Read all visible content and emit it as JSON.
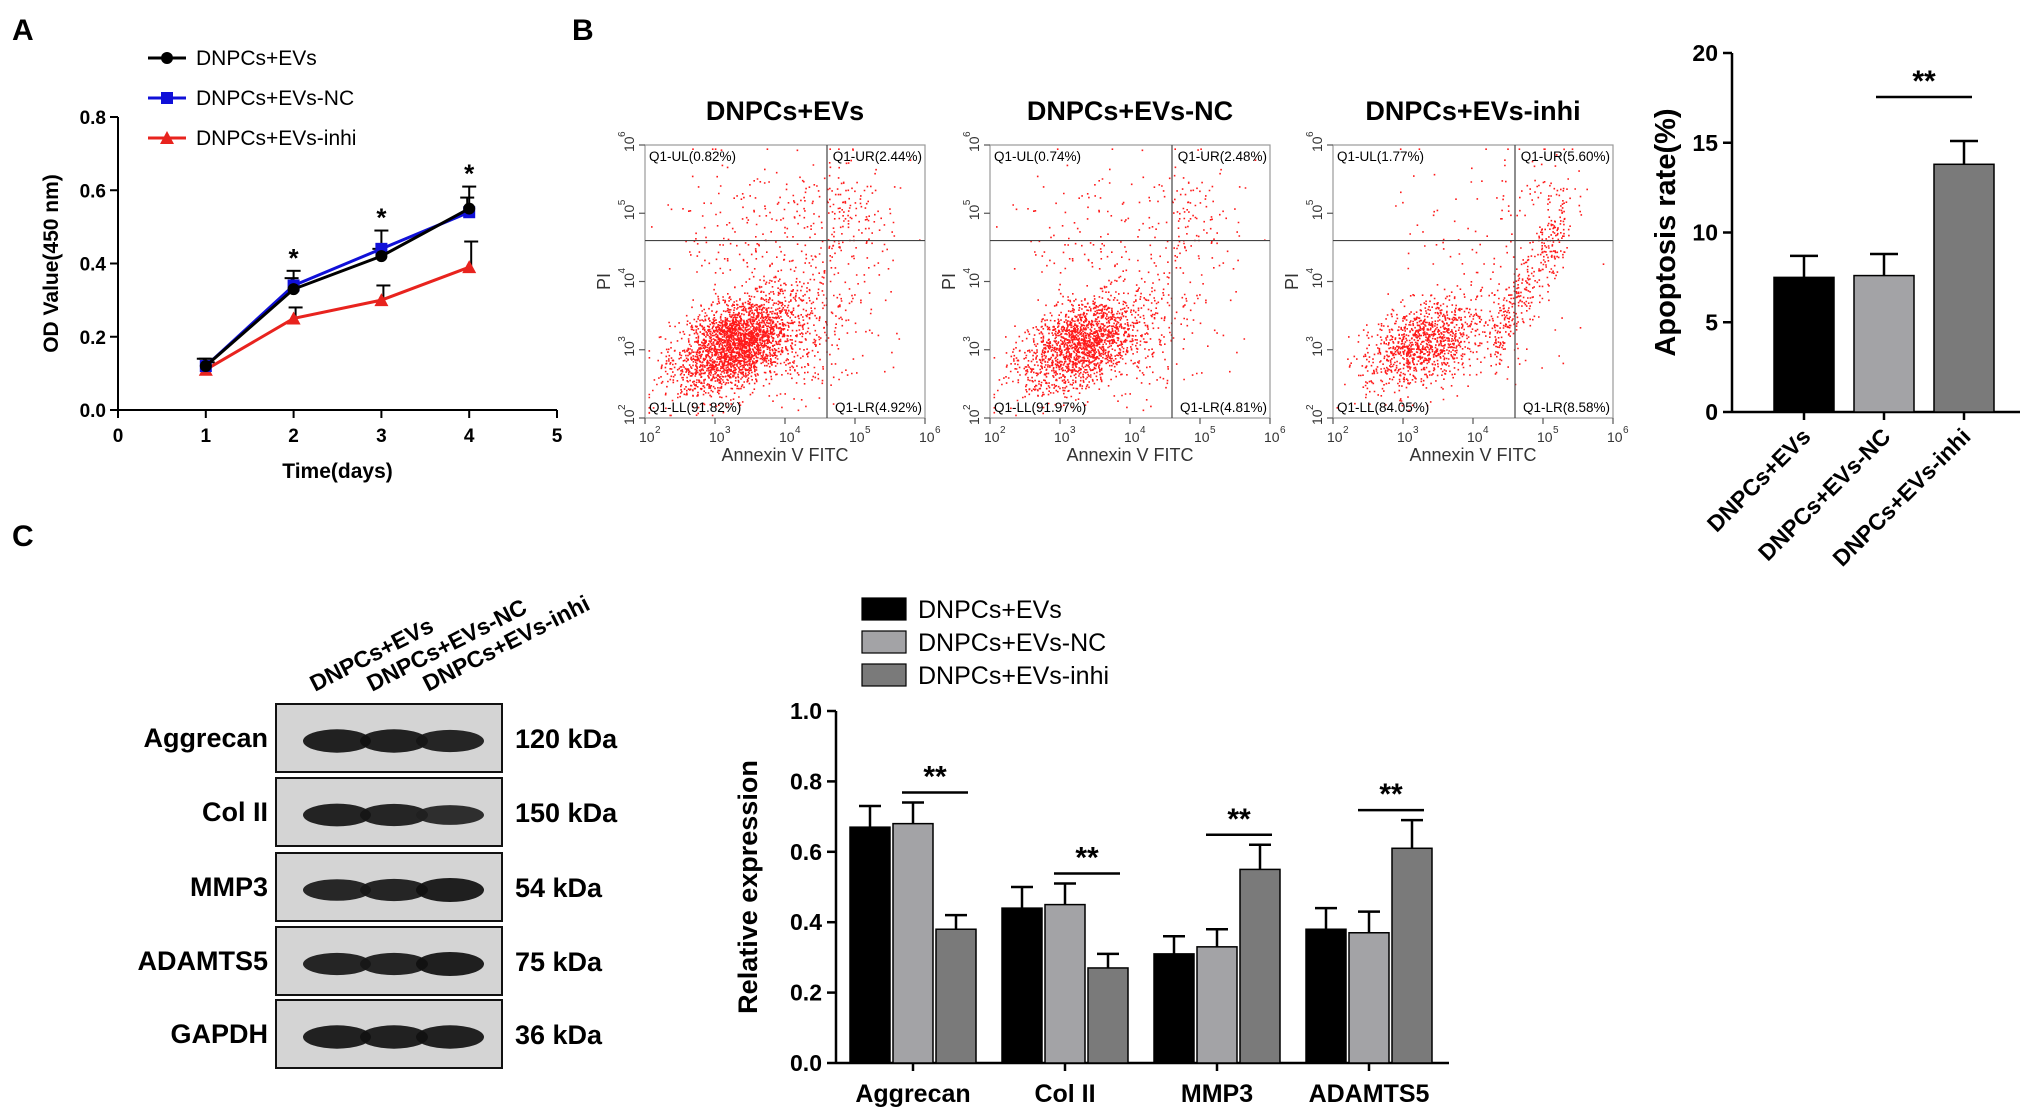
{
  "panels": {
    "a": "A",
    "b": "B",
    "c": "C"
  },
  "colors": {
    "black": "#000000",
    "blue": "#1010d8",
    "red": "#e8231e",
    "bar_black": "#000000",
    "bar_lightgray": "#a3a3a6",
    "bar_darkgray": "#7a7a7a",
    "dot_red": "#ff1a1a"
  },
  "chart_data": [
    {
      "type": "line",
      "panel": "A",
      "title": "",
      "xlabel": "Time(days)",
      "ylabel": "OD Value(450 nm)",
      "xlim": [
        0,
        5
      ],
      "ylim": [
        0,
        0.8
      ],
      "xticks": [
        "0",
        "1",
        "2",
        "3",
        "4",
        "5"
      ],
      "yticks": [
        "0.0",
        "0.2",
        "0.4",
        "0.6",
        "0.8"
      ],
      "x": [
        1,
        2,
        3,
        4
      ],
      "series": [
        {
          "name": "DNPCs+EVs",
          "values": [
            0.12,
            0.33,
            0.42,
            0.55
          ],
          "errors": [
            0.02,
            0.03,
            0.02,
            0.03
          ],
          "color": "#000000",
          "marker": "circle"
        },
        {
          "name": "DNPCs+EVs-NC",
          "values": [
            0.12,
            0.34,
            0.44,
            0.54
          ],
          "errors": [
            0.02,
            0.04,
            0.05,
            0.07
          ],
          "color": "#1010d8",
          "marker": "square"
        },
        {
          "name": "DNPCs+EVs-inhi",
          "values": [
            0.11,
            0.25,
            0.3,
            0.39
          ],
          "errors": [
            0.02,
            0.03,
            0.04,
            0.07
          ],
          "color": "#e8231e",
          "marker": "triangle"
        }
      ],
      "annotations": [
        {
          "x": 2,
          "text": "*"
        },
        {
          "x": 3,
          "text": "*"
        },
        {
          "x": 4,
          "text": "*"
        }
      ],
      "legend_position": "top-left"
    },
    {
      "type": "scatter",
      "panel": "B",
      "plot_kind": "flow cytometry dot plots",
      "xlabel": "Annexin V FITC",
      "ylabel": "PI",
      "ticks": {
        "base": "10",
        "exponents": [
          "2",
          "3",
          "4",
          "5",
          "6"
        ]
      },
      "plots": [
        {
          "title": "DNPCs+EVs",
          "q_ul": "Q1-UL(0.82%)",
          "q_ur": "Q1-UR(2.44%)",
          "q_ll": "Q1-LL(91.82%)",
          "q_lr": "Q1-LR(4.92%)",
          "ur": 2.44,
          "ul": 0.82,
          "ll": 91.82,
          "lr": 4.92
        },
        {
          "title": "DNPCs+EVs-NC",
          "q_ul": "Q1-UL(0.74%)",
          "q_ur": "Q1-UR(2.48%)",
          "q_ll": "Q1-LL(91.97%)",
          "q_lr": "Q1-LR(4.81%)",
          "ur": 2.48,
          "ul": 0.74,
          "ll": 91.97,
          "lr": 4.81
        },
        {
          "title": "DNPCs+EVs-inhi",
          "q_ul": "Q1-UL(1.77%)",
          "q_ur": "Q1-UR(5.60%)",
          "q_ll": "Q1-LL(84.05%)",
          "q_lr": "Q1-LR(8.58%)",
          "ur": 5.6,
          "ul": 1.77,
          "ll": 84.05,
          "lr": 8.58
        }
      ]
    },
    {
      "type": "bar",
      "panel": "B-right",
      "ylabel": "Apoptosis rate(%)",
      "ylim": [
        0,
        20
      ],
      "yticks": [
        "0",
        "5",
        "10",
        "15",
        "20"
      ],
      "categories": [
        "DNPCs+EVs",
        "DNPCs+EVs-NC",
        "DNPCs+EVs-inhi"
      ],
      "values": [
        7.5,
        7.6,
        13.8
      ],
      "errors": [
        1.2,
        1.2,
        1.3
      ],
      "colors": [
        "#000000",
        "#a3a3a6",
        "#7a7a7a"
      ],
      "significance": {
        "between": [
          1,
          2
        ],
        "text": "**"
      }
    },
    {
      "type": "bar",
      "panel": "C",
      "ylabel": "Relative  expression",
      "ylim": [
        0,
        1.0
      ],
      "yticks": [
        "0.0",
        "0.2",
        "0.4",
        "0.6",
        "0.8",
        "1.0"
      ],
      "categories": [
        "Aggrecan",
        "Col II",
        "MMP3",
        "ADAMTS5"
      ],
      "series": [
        {
          "name": "DNPCs+EVs",
          "values": [
            0.67,
            0.44,
            0.31,
            0.38
          ],
          "errors": [
            0.06,
            0.06,
            0.05,
            0.06
          ],
          "color": "#000000"
        },
        {
          "name": "DNPCs+EVs-NC",
          "values": [
            0.68,
            0.45,
            0.33,
            0.37
          ],
          "errors": [
            0.06,
            0.06,
            0.05,
            0.06
          ],
          "color": "#a3a3a6"
        },
        {
          "name": "DNPCs+EVs-inhi",
          "values": [
            0.38,
            0.27,
            0.55,
            0.61
          ],
          "errors": [
            0.04,
            0.04,
            0.07,
            0.08
          ],
          "color": "#7a7a7a"
        }
      ],
      "significance": [
        {
          "category": 0,
          "text": "**"
        },
        {
          "category": 1,
          "text": "**"
        },
        {
          "category": 2,
          "text": "**"
        },
        {
          "category": 3,
          "text": "**"
        }
      ],
      "legend_position": "top-left"
    }
  ],
  "western_blot": {
    "column_labels": [
      "DNPCs+EVs",
      "DNPCs+EVs-NC",
      "DNPCs+EVs-inhi"
    ],
    "rows": [
      {
        "protein": "Aggrecan",
        "size": "120 kDa",
        "intensity": [
          0.95,
          0.95,
          0.85
        ]
      },
      {
        "protein": "Col II",
        "size": "150 kDa",
        "intensity": [
          0.9,
          0.85,
          0.65
        ]
      },
      {
        "protein": "MMP3",
        "size": "54 kDa",
        "intensity": [
          0.8,
          0.85,
          1.0
        ]
      },
      {
        "protein": "ADAMTS5",
        "size": "75 kDa",
        "intensity": [
          0.85,
          0.85,
          1.0
        ]
      },
      {
        "protein": "GAPDH",
        "size": "36 kDa",
        "intensity": [
          0.95,
          0.95,
          0.95
        ]
      }
    ]
  }
}
